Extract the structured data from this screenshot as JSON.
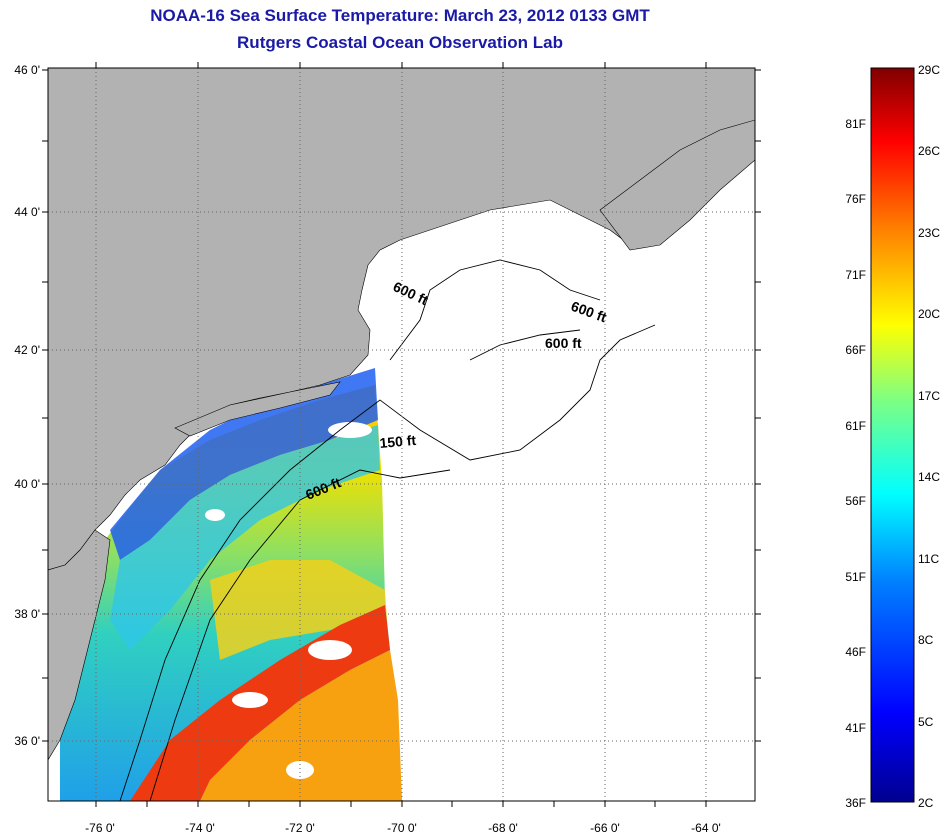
{
  "title": "NOAA-16 Sea Surface Temperature:  March 23, 2012 0133 GMT",
  "subtitle": "Rutgers Coastal Ocean Observation Lab",
  "map": {
    "lat_labels": [
      "46 0'",
      "44 0'",
      "42 0'",
      "40 0'",
      "38 0'",
      "36 0'"
    ],
    "lon_labels": [
      "-76 0'",
      "-74 0'",
      "-72 0'",
      "-70 0'",
      "-68 0'",
      "-66 0'",
      "-64 0'"
    ],
    "lat_range": [
      35,
      46
    ],
    "lon_range": [
      -77,
      -63
    ],
    "contour_labels": [
      "600 ft",
      "600 ft",
      "600 ft",
      "150 ft",
      "600 ft"
    ],
    "colors": {
      "land": "#b2b2b2",
      "no_data": "#ffffff",
      "graticule": "#666666"
    }
  },
  "colorbar": {
    "celsius_labels": [
      "29C",
      "26C",
      "23C",
      "20C",
      "17C",
      "14C",
      "11C",
      "8C",
      "5C",
      "2C"
    ],
    "fahrenheit_labels": [
      "81F",
      "76F",
      "71F",
      "66F",
      "61F",
      "56F",
      "51F",
      "46F",
      "41F",
      "36F"
    ],
    "range_c": [
      2,
      29
    ],
    "stops": [
      "#00008f",
      "#0000ff",
      "#0080ff",
      "#00ffff",
      "#80ff80",
      "#ffff00",
      "#ff8000",
      "#ff0000",
      "#800000"
    ]
  }
}
